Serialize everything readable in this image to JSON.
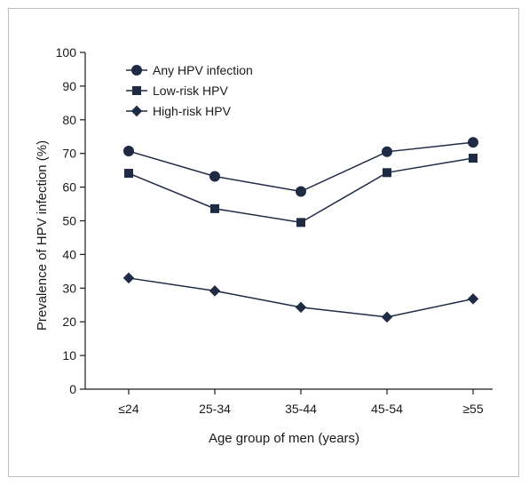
{
  "chart_data": {
    "type": "line",
    "xlabel": "Age group of men (years)",
    "ylabel": "Prevalence of HPV infection (%)",
    "ylim": [
      0,
      100
    ],
    "yticks": [
      0,
      10,
      20,
      30,
      40,
      50,
      60,
      70,
      80,
      90,
      100
    ],
    "categories": [
      "≤24",
      "25-34",
      "35-44",
      "45-54",
      "≥55"
    ],
    "grid": false,
    "legend_position": "top-left",
    "series": [
      {
        "name": "Any HPV infection",
        "marker": "circle",
        "values": [
          70.7,
          63.2,
          58.7,
          70.5,
          73.3
        ]
      },
      {
        "name": "Low-risk HPV",
        "marker": "square",
        "values": [
          64.1,
          53.6,
          49.5,
          64.3,
          68.6
        ]
      },
      {
        "name": "High-risk HPV",
        "marker": "diamond",
        "values": [
          33.0,
          29.2,
          24.3,
          21.4,
          26.8
        ]
      }
    ],
    "colors": {
      "line": "#1f2a44",
      "axis": "#1a1a1a"
    }
  }
}
